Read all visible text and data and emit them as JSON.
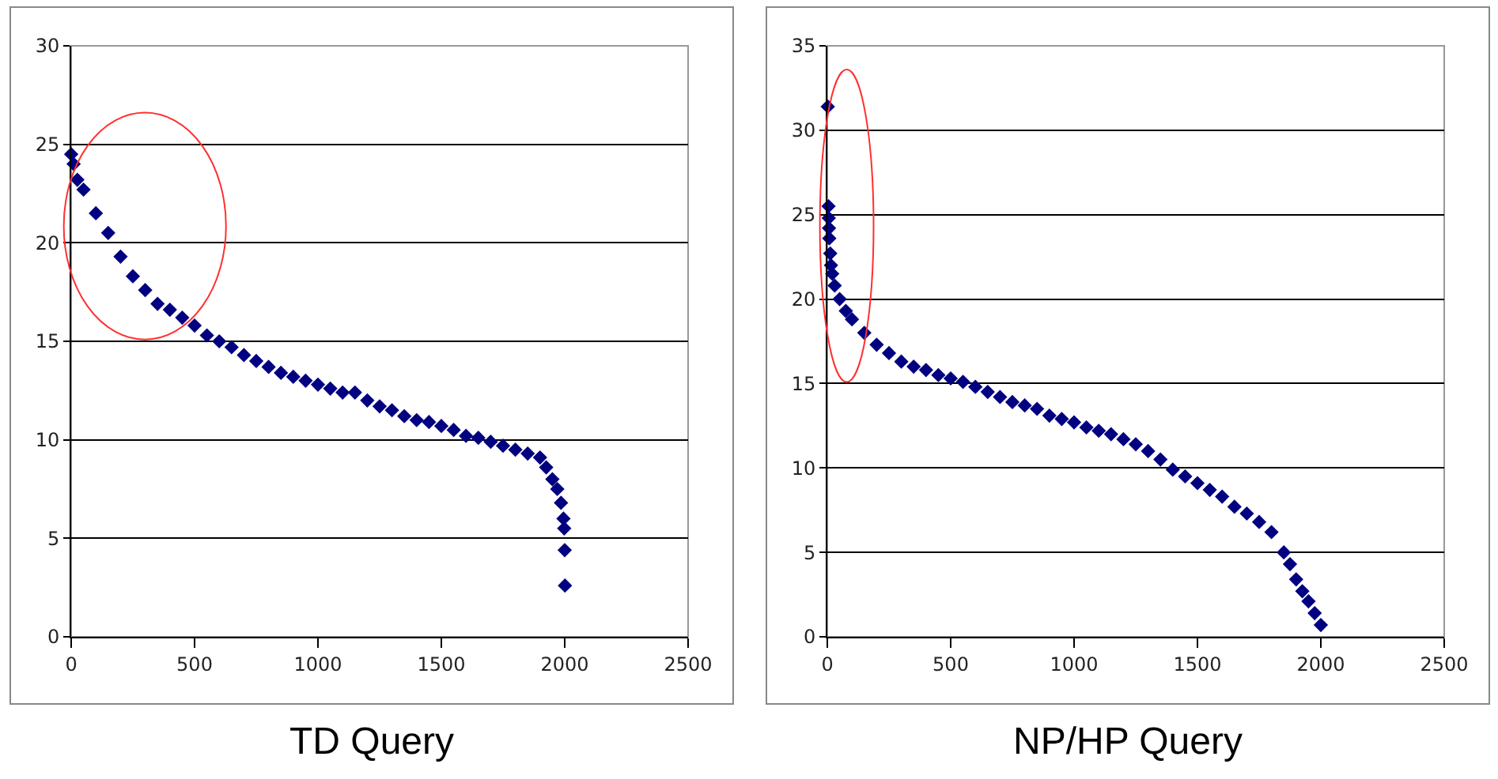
{
  "chart_data": [
    {
      "type": "scatter",
      "title": "TD Query",
      "marker": "diamond",
      "grid": "y",
      "xlim": [
        0,
        2500
      ],
      "xticks": [
        0,
        500,
        1000,
        1500,
        2000,
        2500
      ],
      "ylim": [
        0,
        30
      ],
      "yticks": [
        0,
        5,
        10,
        15,
        20,
        25,
        30
      ],
      "series": [
        {
          "color": "#000080",
          "x": [
            0,
            10,
            25,
            50,
            100,
            150,
            200,
            250,
            300,
            350,
            400,
            450,
            500,
            550,
            600,
            650,
            700,
            750,
            800,
            850,
            900,
            950,
            1000,
            1050,
            1100,
            1150,
            1200,
            1250,
            1300,
            1350,
            1400,
            1450,
            1500,
            1550,
            1600,
            1650,
            1700,
            1750,
            1800,
            1850,
            1900,
            1925,
            1950,
            1970,
            1985,
            1995,
            1998,
            2000,
            2001
          ],
          "values": [
            24.5,
            24,
            23.2,
            22.7,
            21.5,
            20.5,
            19.3,
            18.3,
            17.6,
            16.9,
            16.6,
            16.2,
            15.8,
            15.3,
            15,
            14.7,
            14.3,
            14,
            13.7,
            13.4,
            13.2,
            13,
            12.8,
            12.6,
            12.4,
            12.4,
            12,
            11.7,
            11.5,
            11.2,
            11,
            10.9,
            10.7,
            10.5,
            10.2,
            10.1,
            9.9,
            9.7,
            9.5,
            9.3,
            9.1,
            8.6,
            8,
            7.5,
            6.8,
            6,
            5.5,
            4.4,
            2.6
          ]
        }
      ]
    },
    {
      "type": "scatter",
      "title": "NP/HP Query",
      "marker": "diamond",
      "grid": "y",
      "xlim": [
        0,
        2500
      ],
      "xticks": [
        0,
        500,
        1000,
        1500,
        2000,
        2500
      ],
      "ylim": [
        0,
        35
      ],
      "yticks": [
        0,
        5,
        10,
        15,
        20,
        25,
        30,
        35
      ],
      "series": [
        {
          "color": "#000080",
          "x": [
            2,
            5,
            6,
            7,
            8,
            12,
            15,
            20,
            30,
            50,
            75,
            100,
            150,
            200,
            250,
            300,
            350,
            400,
            450,
            500,
            550,
            600,
            650,
            700,
            750,
            800,
            850,
            900,
            950,
            1000,
            1050,
            1100,
            1150,
            1200,
            1250,
            1300,
            1350,
            1400,
            1450,
            1500,
            1550,
            1600,
            1650,
            1700,
            1750,
            1800,
            1850,
            1875,
            1900,
            1925,
            1950,
            1975,
            2000
          ],
          "values": [
            31.4,
            25.5,
            24.8,
            24.2,
            23.6,
            22.7,
            22,
            21.5,
            20.8,
            20,
            19.3,
            18.8,
            18,
            17.3,
            16.8,
            16.3,
            16,
            15.8,
            15.5,
            15.3,
            15.1,
            14.8,
            14.5,
            14.2,
            13.9,
            13.7,
            13.5,
            13.1,
            12.9,
            12.7,
            12.4,
            12.2,
            12,
            11.7,
            11.4,
            11,
            10.5,
            9.9,
            9.5,
            9.1,
            8.7,
            8.3,
            7.7,
            7.3,
            6.8,
            6.2,
            5,
            4.3,
            3.4,
            2.7,
            2.1,
            1.4,
            0.7
          ]
        }
      ]
    }
  ]
}
